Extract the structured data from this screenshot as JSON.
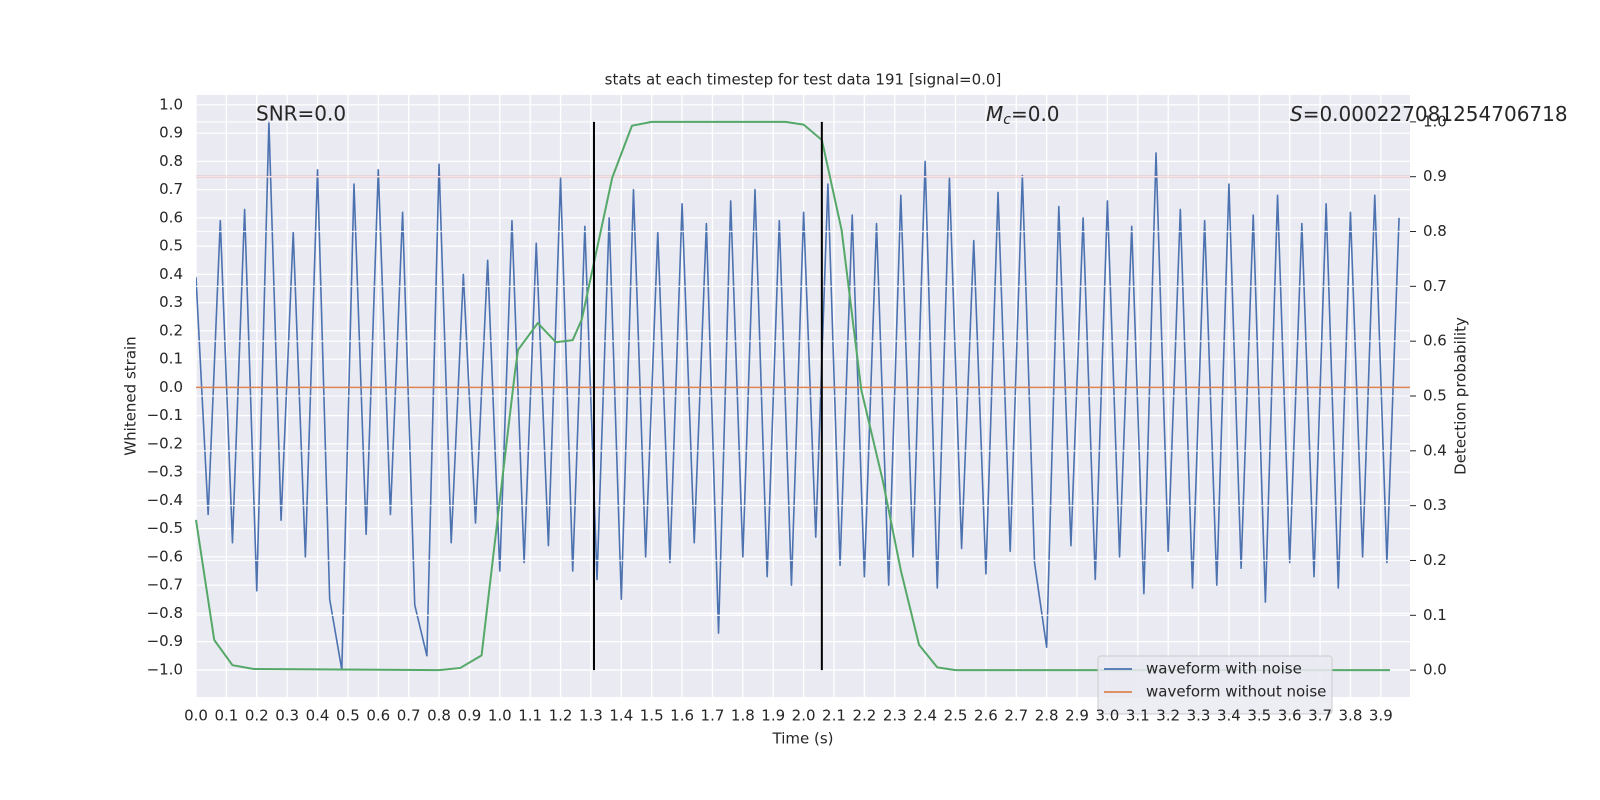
{
  "chart_data": {
    "type": "line",
    "title": "stats at each timestep for test data 191 [signal=0.0]",
    "xlabel": "Time (s)",
    "ylabel": "Whitened strain",
    "y2label": "Detection probability",
    "grid": true,
    "legend": "lower right",
    "xlim": [
      0,
      3.996
    ],
    "ylim": [
      -1.096,
      1.035
    ],
    "y2lim": [
      -0.049,
      1.049
    ],
    "xticks": [
      {
        "value": 0,
        "label": "0.0"
      },
      {
        "value": 0.1,
        "label": "0.1"
      },
      {
        "value": 0.2,
        "label": "0.2"
      },
      {
        "value": 0.3,
        "label": "0.3"
      },
      {
        "value": 0.4,
        "label": "0.4"
      },
      {
        "value": 0.5,
        "label": "0.5"
      },
      {
        "value": 0.6,
        "label": "0.6"
      },
      {
        "value": 0.7,
        "label": "0.7"
      },
      {
        "value": 0.8,
        "label": "0.8"
      },
      {
        "value": 0.9,
        "label": "0.9"
      },
      {
        "value": 1,
        "label": "1.0"
      },
      {
        "value": 1.1,
        "label": "1.1"
      },
      {
        "value": 1.2,
        "label": "1.2"
      },
      {
        "value": 1.3,
        "label": "1.3"
      },
      {
        "value": 1.4,
        "label": "1.4"
      },
      {
        "value": 1.5,
        "label": "1.5"
      },
      {
        "value": 1.6,
        "label": "1.6"
      },
      {
        "value": 1.7,
        "label": "1.7"
      },
      {
        "value": 1.8,
        "label": "1.8"
      },
      {
        "value": 1.9,
        "label": "1.9"
      },
      {
        "value": 2,
        "label": "2.0"
      },
      {
        "value": 2.1,
        "label": "2.1"
      },
      {
        "value": 2.2,
        "label": "2.2"
      },
      {
        "value": 2.3,
        "label": "2.3"
      },
      {
        "value": 2.4,
        "label": "2.4"
      },
      {
        "value": 2.5,
        "label": "2.5"
      },
      {
        "value": 2.6,
        "label": "2.6"
      },
      {
        "value": 2.7,
        "label": "2.7"
      },
      {
        "value": 2.8,
        "label": "2.8"
      },
      {
        "value": 2.9,
        "label": "2.9"
      },
      {
        "value": 3,
        "label": "3.0"
      },
      {
        "value": 3.1,
        "label": "3.1"
      },
      {
        "value": 3.2,
        "label": "3.2"
      },
      {
        "value": 3.3,
        "label": "3.3"
      },
      {
        "value": 3.4,
        "label": "3.4"
      },
      {
        "value": 3.5,
        "label": "3.5"
      },
      {
        "value": 3.6,
        "label": "3.6"
      },
      {
        "value": 3.7,
        "label": "3.7"
      },
      {
        "value": 3.8,
        "label": "3.8"
      },
      {
        "value": 3.9,
        "label": "3.9"
      }
    ],
    "yticks": [
      {
        "value": -1,
        "label": "−1.0"
      },
      {
        "value": -0.9,
        "label": "−0.9"
      },
      {
        "value": -0.8,
        "label": "−0.8"
      },
      {
        "value": -0.7,
        "label": "−0.7"
      },
      {
        "value": -0.6,
        "label": "−0.6"
      },
      {
        "value": -0.5,
        "label": "−0.5"
      },
      {
        "value": -0.4,
        "label": "−0.4"
      },
      {
        "value": -0.3,
        "label": "−0.3"
      },
      {
        "value": -0.2,
        "label": "−0.2"
      },
      {
        "value": -0.1,
        "label": "−0.1"
      },
      {
        "value": 0,
        "label": "0.0"
      },
      {
        "value": 0.1,
        "label": "0.1"
      },
      {
        "value": 0.2,
        "label": "0.2"
      },
      {
        "value": 0.3,
        "label": "0.3"
      },
      {
        "value": 0.4,
        "label": "0.4"
      },
      {
        "value": 0.5,
        "label": "0.5"
      },
      {
        "value": 0.6,
        "label": "0.6"
      },
      {
        "value": 0.7,
        "label": "0.7"
      },
      {
        "value": 0.8,
        "label": "0.8"
      },
      {
        "value": 0.9,
        "label": "0.9"
      },
      {
        "value": 1,
        "label": "1.0"
      }
    ],
    "y2ticks": [
      {
        "value": 0,
        "label": "0.0"
      },
      {
        "value": 0.1,
        "label": "0.1"
      },
      {
        "value": 0.2,
        "label": "0.2"
      },
      {
        "value": 0.3,
        "label": "0.3"
      },
      {
        "value": 0.4,
        "label": "0.4"
      },
      {
        "value": 0.5,
        "label": "0.5"
      },
      {
        "value": 0.6,
        "label": "0.6"
      },
      {
        "value": 0.7,
        "label": "0.7"
      },
      {
        "value": 0.8,
        "label": "0.8"
      },
      {
        "value": 0.9,
        "label": "0.9"
      },
      {
        "value": 1,
        "label": "1.0"
      }
    ],
    "series": [
      {
        "name": "waveform with noise",
        "color": "#4c72b0",
        "x": [
          0,
          0.04,
          0.08,
          0.12,
          0.16,
          0.2,
          0.24,
          0.28,
          0.32,
          0.36,
          0.4,
          0.44,
          0.48,
          0.52,
          0.56,
          0.6,
          0.64,
          0.68,
          0.72,
          0.76,
          0.8,
          0.84,
          0.88,
          0.92,
          0.96,
          1,
          1.04,
          1.08,
          1.12,
          1.16,
          1.2,
          1.24,
          1.28,
          1.32,
          1.36,
          1.4,
          1.44,
          1.48,
          1.52,
          1.56,
          1.6,
          1.64,
          1.68,
          1.72,
          1.76,
          1.8,
          1.84,
          1.88,
          1.92,
          1.96,
          2,
          2.04,
          2.08,
          2.12,
          2.16,
          2.2,
          2.24,
          2.28,
          2.32,
          2.36,
          2.4,
          2.44,
          2.48,
          2.52,
          2.56,
          2.6,
          2.64,
          2.68,
          2.72,
          2.76,
          2.8,
          2.84,
          2.88,
          2.92,
          2.96,
          3,
          3.04,
          3.08,
          3.12,
          3.16,
          3.2,
          3.24,
          3.28,
          3.32,
          3.36,
          3.4,
          3.44,
          3.48,
          3.52,
          3.56,
          3.6,
          3.64,
          3.68,
          3.72,
          3.76,
          3.8,
          3.84,
          3.88,
          3.92,
          3.96
        ],
        "values": [
          0.39,
          -0.45,
          0.59,
          -0.55,
          0.63,
          -0.72,
          0.94,
          -0.47,
          0.55,
          -0.6,
          0.77,
          -0.75,
          -1.0,
          0.72,
          -0.52,
          0.77,
          -0.45,
          0.62,
          -0.77,
          -0.95,
          0.79,
          -0.55,
          0.4,
          -0.48,
          0.45,
          -0.65,
          0.59,
          -0.62,
          0.51,
          -0.56,
          0.74,
          -0.65,
          0.57,
          -0.68,
          0.6,
          -0.75,
          0.7,
          -0.6,
          0.55,
          -0.62,
          0.65,
          -0.55,
          0.58,
          -0.87,
          0.66,
          -0.6,
          0.7,
          -0.67,
          0.59,
          -0.7,
          0.62,
          -0.53,
          0.72,
          -0.63,
          0.61,
          -0.67,
          0.58,
          -0.7,
          0.68,
          -0.6,
          0.8,
          -0.71,
          0.74,
          -0.57,
          0.52,
          -0.66,
          0.69,
          -0.58,
          0.75,
          -0.62,
          -0.92,
          0.64,
          -0.56,
          0.6,
          -0.68,
          0.66,
          -0.6,
          0.57,
          -0.73,
          0.83,
          -0.58,
          0.63,
          -0.71,
          0.59,
          -0.7,
          0.72,
          -0.64,
          0.61,
          -0.76,
          0.68,
          -0.62,
          0.58,
          -0.67,
          0.65,
          -0.71,
          0.62,
          -0.6,
          0.68,
          -0.62,
          0.6
        ]
      },
      {
        "name": "waveform without noise",
        "color": "#dd8452",
        "x": [
          0,
          3.996
        ],
        "values": [
          0,
          0
        ]
      },
      {
        "color": "#55a868",
        "axis": "y2",
        "x": [
          0,
          0.06,
          0.12,
          0.19,
          0.8,
          0.87,
          0.94,
          1.0,
          1.05,
          1.06,
          1.125,
          1.185,
          1.24,
          1.27,
          1.37,
          1.435,
          1.5,
          1.94,
          2.0,
          2.06,
          2.125,
          2.19,
          2.26,
          2.32,
          2.38,
          2.44,
          2.5,
          3.93
        ],
        "values": [
          0.274,
          0.055,
          0.009,
          0.002,
          0.0,
          0.004,
          0.027,
          0.31,
          0.544,
          0.584,
          0.633,
          0.598,
          0.602,
          0.64,
          0.898,
          0.993,
          1.0,
          1.0,
          0.995,
          0.967,
          0.803,
          0.511,
          0.347,
          0.182,
          0.046,
          0.005,
          0.0,
          0.0
        ]
      }
    ],
    "vlines": {
      "color": "#000000",
      "x": [
        1.31,
        2.06
      ]
    },
    "hline": {
      "color": "#c44e52",
      "axis": "y2",
      "value": 0.9
    },
    "annotations": {
      "snr": "SNR=0.0",
      "mc": {
        "symbol": "M",
        "subscript": "c",
        "text": "=0.0"
      },
      "s": {
        "symbol": "S",
        "text": "=0.000227081254706718"
      }
    }
  }
}
